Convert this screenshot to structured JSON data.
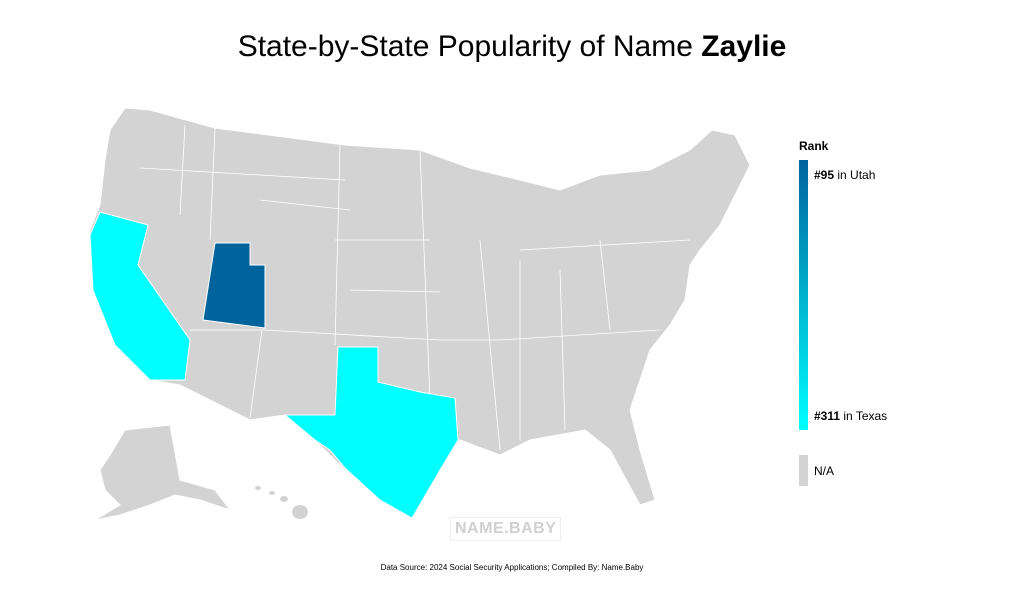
{
  "title": {
    "prefix": "State-by-State Popularity of Name ",
    "name": "Zaylie"
  },
  "colors": {
    "high": "#00639c",
    "low": "#00ffff",
    "na": "#d3d3d3",
    "border": "#ffffff"
  },
  "legend": {
    "title": "Rank",
    "top": {
      "rank": "#95",
      "text": " in Utah"
    },
    "bottom": {
      "rank": "#311",
      "text": " in Texas"
    },
    "na": "N/A"
  },
  "states": [
    {
      "name": "Utah",
      "rank": 95
    },
    {
      "name": "California",
      "rank": null
    },
    {
      "name": "Texas",
      "rank": 311
    }
  ],
  "watermark": "NAME.BABY",
  "source": "Data Source: 2024 Social Security Applications; Compiled By: Name.Baby"
}
